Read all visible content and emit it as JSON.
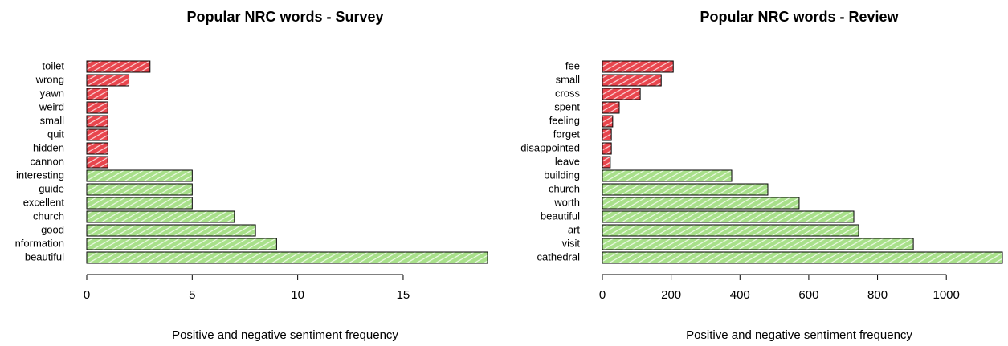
{
  "chart_data": [
    {
      "type": "barh",
      "title": "Popular NRC words - Survey",
      "x_label": "Positive and negative sentiment frequency",
      "categories": [
        "toilet",
        "wrong",
        "yawn",
        "weird",
        "small",
        "quit",
        "hidden",
        "cannon",
        "interesting",
        "guide",
        "excellent",
        "church",
        "good",
        "nformation",
        "beautiful"
      ],
      "values": [
        3,
        2,
        1,
        1,
        1,
        1,
        1,
        1,
        5,
        5,
        5,
        7,
        8,
        9,
        19
      ],
      "colors": [
        "#e8454d",
        "#e8454d",
        "#e8454d",
        "#e8454d",
        "#e8454d",
        "#e8454d",
        "#e8454d",
        "#e8454d",
        "#a8e08a",
        "#a8e08a",
        "#a8e08a",
        "#a8e08a",
        "#a8e08a",
        "#a8e08a",
        "#a8e08a"
      ],
      "xlim": [
        0,
        19
      ],
      "xticks": [
        0,
        5,
        10,
        15
      ]
    },
    {
      "type": "barh",
      "title": "Popular NRC words - Review",
      "x_label": "Positive and negative sentiment frequency",
      "categories": [
        "fee",
        "small",
        "cross",
        "spent",
        "feeling",
        "forget",
        "disappointed",
        "leave",
        "building",
        "church",
        "worth",
        "beautiful",
        "art",
        "visit",
        "cathedral"
      ],
      "values": [
        206,
        171,
        110,
        49,
        30,
        26,
        26,
        23,
        376,
        481,
        572,
        731,
        745,
        904,
        1163
      ],
      "colors": [
        "#e8454d",
        "#e8454d",
        "#e8454d",
        "#e8454d",
        "#e8454d",
        "#e8454d",
        "#e8454d",
        "#e8454d",
        "#a8e08a",
        "#a8e08a",
        "#a8e08a",
        "#a8e08a",
        "#a8e08a",
        "#a8e08a",
        "#a8e08a"
      ],
      "xlim": [
        0,
        1163
      ],
      "xticks": [
        0,
        200,
        400,
        600,
        800,
        1000
      ]
    }
  ]
}
